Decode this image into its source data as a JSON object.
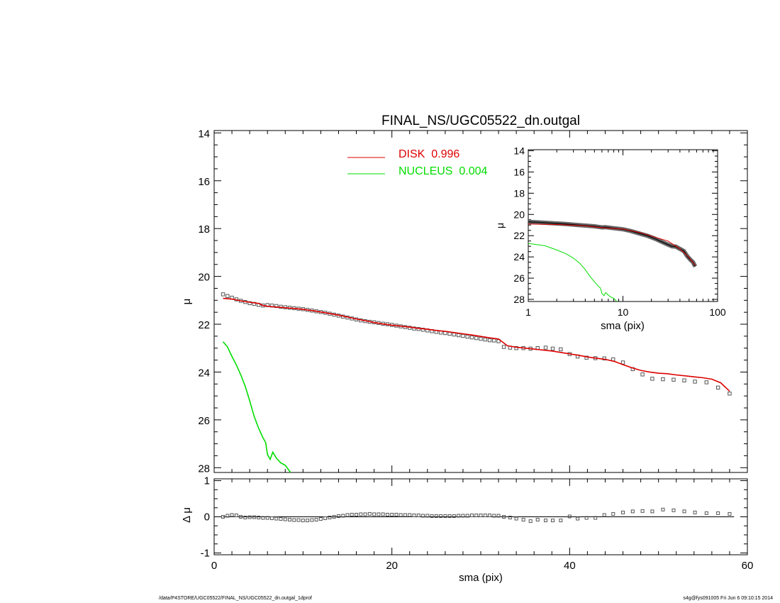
{
  "footer": {
    "left": "/data/P4STORE/UGC05522/FINAL_NS/UGC05522_dn.outgal_1dprof",
    "right": "s4g@fys091005  Fri Jun  6 09:10:15 2014"
  },
  "chart_data": [
    {
      "id": "main",
      "type": "scatter",
      "title": "FINAL_NS/UGC05522_dn.outgal",
      "xlabel": "",
      "ylabel": "μ",
      "xlim": [
        0,
        60
      ],
      "ylim": [
        28.2,
        13.9
      ],
      "yticks": [
        14,
        16,
        18,
        20,
        22,
        24,
        26,
        28
      ],
      "legend": [
        {
          "label": "DISK  0.996",
          "color": "#dd0000"
        },
        {
          "label": "NUCLEUS  0.004",
          "color": "#00dd00"
        }
      ],
      "observed": {
        "x": [
          1.0,
          1.5,
          2.0,
          2.5,
          3.0,
          3.5,
          4.0,
          4.5,
          5.0,
          5.5,
          6.0,
          6.5,
          7.0,
          7.5,
          8.0,
          8.5,
          9.0,
          9.5,
          10.0,
          10.5,
          11.0,
          11.5,
          12.0,
          12.5,
          13.0,
          13.5,
          14.0,
          14.5,
          15.0,
          15.5,
          16.0,
          16.5,
          17.0,
          17.5,
          18.0,
          18.5,
          19.0,
          19.5,
          20.0,
          20.5,
          21.0,
          21.5,
          22.0,
          22.5,
          23.0,
          23.5,
          24.0,
          24.5,
          25.0,
          25.5,
          26.0,
          26.5,
          27.0,
          27.5,
          28.0,
          28.5,
          29.0,
          29.5,
          30.0,
          30.5,
          31.0,
          31.5,
          32.0,
          32.6,
          33.3,
          34.0,
          34.8,
          35.6,
          36.4,
          37.3,
          38.1,
          39.0,
          40.0,
          40.9,
          41.9,
          42.9,
          43.9,
          44.9,
          46.0,
          47.1,
          48.2,
          49.3,
          50.5,
          51.7,
          52.9,
          54.1,
          55.4,
          56.7,
          58.0
        ],
        "y": [
          20.75,
          20.82,
          20.89,
          20.96,
          21.02,
          21.07,
          21.12,
          21.15,
          21.19,
          21.22,
          21.2,
          21.22,
          21.24,
          21.27,
          21.29,
          21.31,
          21.33,
          21.35,
          21.37,
          21.4,
          21.43,
          21.46,
          21.49,
          21.52,
          21.56,
          21.6,
          21.64,
          21.68,
          21.72,
          21.76,
          21.8,
          21.84,
          21.87,
          21.9,
          21.92,
          21.95,
          21.98,
          22.0,
          22.03,
          22.06,
          22.09,
          22.12,
          22.15,
          22.18,
          22.2,
          22.23,
          22.26,
          22.29,
          22.32,
          22.35,
          22.37,
          22.4,
          22.43,
          22.46,
          22.49,
          22.52,
          22.55,
          22.58,
          22.61,
          22.64,
          22.67,
          22.68,
          22.71,
          22.95,
          22.98,
          23.0,
          23.0,
          23.02,
          23.0,
          22.98,
          23.02,
          23.05,
          23.25,
          23.35,
          23.4,
          23.42,
          23.43,
          23.47,
          23.6,
          23.88,
          24.1,
          24.28,
          24.3,
          24.32,
          24.35,
          24.4,
          24.43,
          24.65,
          24.9
        ]
      },
      "disk": {
        "x": [
          1,
          2,
          3,
          4,
          5,
          5.5,
          6,
          7,
          8,
          9,
          10,
          11,
          12,
          13,
          14,
          15,
          16,
          17,
          18,
          19,
          20,
          21,
          22,
          23,
          24,
          25,
          26,
          27,
          28,
          29,
          30,
          31,
          32,
          33,
          34,
          35,
          36,
          37,
          38,
          39,
          40,
          41,
          42,
          43,
          44,
          45,
          46,
          47,
          48,
          49,
          50,
          51,
          52,
          53,
          54,
          55,
          56,
          57,
          58
        ],
        "y": [
          20.92,
          20.95,
          21.02,
          21.08,
          21.13,
          21.22,
          21.25,
          21.28,
          21.31,
          21.34,
          21.38,
          21.43,
          21.49,
          21.55,
          21.62,
          21.7,
          21.78,
          21.85,
          21.93,
          21.99,
          22.04,
          22.08,
          22.12,
          22.17,
          22.21,
          22.26,
          22.3,
          22.35,
          22.4,
          22.45,
          22.51,
          22.57,
          22.62,
          22.9,
          22.96,
          23.0,
          23.04,
          23.08,
          23.12,
          23.18,
          23.24,
          23.3,
          23.37,
          23.42,
          23.47,
          23.55,
          23.69,
          23.82,
          23.93,
          24.0,
          24.05,
          24.07,
          24.12,
          24.16,
          24.2,
          24.24,
          24.3,
          24.45,
          24.8
        ]
      },
      "nucleus": {
        "x": [
          1.0,
          1.5,
          2.0,
          2.5,
          3.0,
          3.5,
          4.0,
          4.5,
          5.0,
          5.5,
          5.8,
          6.0,
          6.3,
          6.6,
          7.0,
          7.5,
          8.0,
          8.6
        ],
        "y": [
          22.73,
          22.95,
          23.35,
          23.7,
          24.12,
          24.6,
          25.2,
          25.85,
          26.35,
          26.75,
          26.95,
          27.45,
          27.65,
          27.35,
          27.6,
          27.8,
          27.9,
          28.2
        ]
      }
    },
    {
      "id": "residual",
      "type": "scatter",
      "xlabel": "sma (pix)",
      "ylabel": "Δ μ",
      "xlim": [
        0,
        60
      ],
      "xticks": [
        0,
        20,
        40,
        60
      ],
      "ylim": [
        -1.05,
        1.05
      ],
      "yticks": [
        1,
        0,
        -1
      ],
      "x": [
        1.0,
        1.5,
        2.0,
        2.5,
        3.0,
        3.5,
        4.0,
        4.5,
        5.0,
        5.5,
        6.0,
        6.5,
        7.0,
        7.5,
        8.0,
        8.5,
        9.0,
        9.5,
        10.0,
        10.5,
        11.0,
        11.5,
        12.0,
        12.5,
        13.0,
        13.5,
        14.0,
        14.5,
        15.0,
        15.5,
        16.0,
        16.5,
        17.0,
        17.5,
        18.0,
        18.5,
        19.0,
        19.5,
        20.0,
        20.5,
        21.0,
        21.5,
        22.0,
        22.5,
        23.0,
        23.5,
        24.0,
        24.5,
        25.0,
        25.5,
        26.0,
        26.5,
        27.0,
        27.5,
        28.0,
        28.5,
        29.0,
        29.5,
        30.0,
        30.5,
        31.0,
        31.5,
        32.0,
        32.6,
        33.3,
        34.0,
        34.8,
        35.6,
        36.4,
        37.3,
        38.1,
        39.0,
        40.0,
        40.9,
        41.9,
        42.9,
        43.9,
        44.9,
        46.0,
        47.1,
        48.2,
        49.3,
        50.5,
        51.7,
        52.9,
        54.1,
        55.4,
        56.7,
        58.0
      ],
      "y": [
        0.0,
        0.03,
        0.05,
        0.04,
        0.0,
        -0.02,
        -0.01,
        -0.01,
        -0.02,
        -0.03,
        -0.03,
        -0.04,
        -0.05,
        -0.06,
        -0.07,
        -0.08,
        -0.09,
        -0.09,
        -0.1,
        -0.1,
        -0.09,
        -0.08,
        -0.06,
        -0.04,
        -0.02,
        0.0,
        0.02,
        0.03,
        0.05,
        0.06,
        0.06,
        0.07,
        0.07,
        0.08,
        0.07,
        0.07,
        0.07,
        0.06,
        0.06,
        0.06,
        0.05,
        0.05,
        0.05,
        0.04,
        0.04,
        0.03,
        0.03,
        0.02,
        0.02,
        0.02,
        0.02,
        0.02,
        0.02,
        0.03,
        0.03,
        0.03,
        0.04,
        0.04,
        0.04,
        0.04,
        0.04,
        0.03,
        0.03,
        0.0,
        -0.02,
        -0.05,
        -0.08,
        -0.12,
        -0.08,
        -0.1,
        -0.1,
        -0.1,
        0.01,
        -0.05,
        -0.03,
        -0.03,
        0.05,
        0.08,
        0.12,
        0.15,
        0.16,
        0.15,
        0.2,
        0.18,
        0.15,
        0.12,
        0.1,
        0.1,
        0.08
      ]
    },
    {
      "id": "inset",
      "type": "line",
      "xlabel": "sma (pix)",
      "ylabel": "μ",
      "xscale": "log",
      "xlim": [
        1,
        100
      ],
      "xticks": [
        1,
        10,
        100
      ],
      "ylim": [
        28.2,
        13.9
      ],
      "yticks": [
        14,
        16,
        18,
        20,
        22,
        24,
        26,
        28
      ],
      "observed": {
        "x": [
          1.0,
          1.3,
          1.6,
          2.0,
          2.5,
          3.2,
          4.0,
          5.0,
          5.8,
          6.0,
          6.5,
          8.0,
          10,
          12,
          15,
          18,
          22,
          26,
          30,
          33,
          36,
          40,
          44,
          48,
          52,
          55,
          58
        ],
        "y": [
          20.7,
          20.75,
          20.8,
          20.85,
          20.9,
          20.98,
          21.05,
          21.12,
          21.2,
          21.22,
          21.2,
          21.3,
          21.4,
          21.55,
          21.8,
          22.0,
          22.3,
          22.6,
          22.85,
          23.0,
          23.02,
          23.25,
          23.45,
          23.95,
          24.3,
          24.5,
          24.9
        ]
      },
      "disk": {
        "x": [
          1.0,
          2.0,
          4.0,
          6.0,
          10,
          15,
          20,
          30,
          40,
          50,
          58
        ],
        "y": [
          20.9,
          20.95,
          21.08,
          21.25,
          21.38,
          21.7,
          22.04,
          22.51,
          23.24,
          24.05,
          24.8
        ]
      },
      "nucleus": {
        "x": [
          1.0,
          1.5,
          2.0,
          2.5,
          3.0,
          3.5,
          4.0,
          4.5,
          5.0,
          5.5,
          5.8,
          6.0,
          6.3,
          6.6,
          7.0,
          7.5,
          8.0,
          8.6
        ],
        "y": [
          22.73,
          22.95,
          23.35,
          23.7,
          24.12,
          24.6,
          25.2,
          25.85,
          26.35,
          26.75,
          26.95,
          27.45,
          27.65,
          27.35,
          27.6,
          27.8,
          27.9,
          28.2
        ]
      }
    }
  ]
}
